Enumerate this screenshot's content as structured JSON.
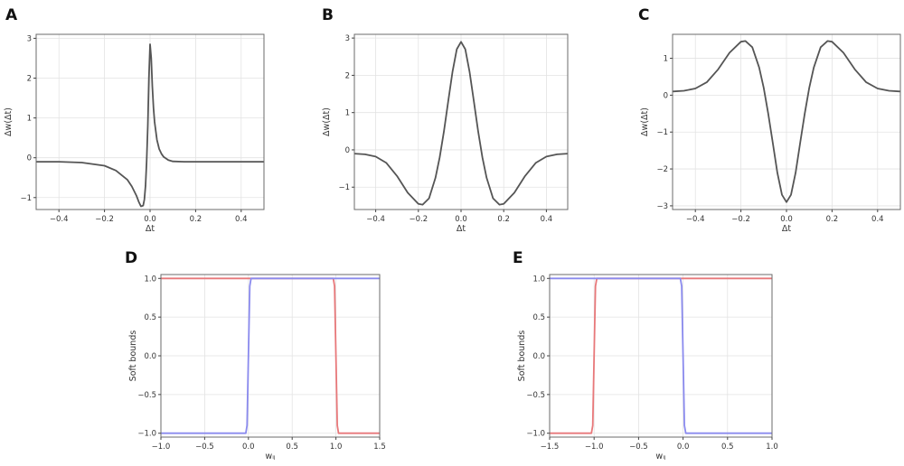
{
  "chart_data": [
    {
      "panel": "A",
      "type": "line",
      "xlabel": "Δt",
      "ylabel": "Δw(Δt)",
      "xlim": [
        -0.5,
        0.5
      ],
      "ylim": [
        -1.3,
        3.1
      ],
      "xticks": [
        -0.4,
        -0.2,
        0.0,
        0.2,
        0.4
      ],
      "xticklabels": [
        "−0.4",
        "−0.2",
        "0.0",
        "0.2",
        "0.4"
      ],
      "yticks": [
        -1,
        0,
        1,
        2,
        3
      ],
      "yticklabels": [
        "−1",
        "0",
        "1",
        "2",
        "3"
      ],
      "grid": true,
      "series": [
        {
          "color": "#555555",
          "x": [
            -0.5,
            -0.4,
            -0.3,
            -0.2,
            -0.15,
            -0.1,
            -0.08,
            -0.06,
            -0.05,
            -0.04,
            -0.03,
            -0.025,
            -0.02,
            -0.015,
            -0.01,
            -0.005,
            0.0,
            0.005,
            0.01,
            0.015,
            0.02,
            0.03,
            0.04,
            0.05,
            0.06,
            0.08,
            0.1,
            0.15,
            0.2,
            0.3,
            0.4,
            0.5
          ],
          "y": [
            -0.1,
            -0.1,
            -0.12,
            -0.2,
            -0.32,
            -0.55,
            -0.72,
            -0.95,
            -1.1,
            -1.22,
            -1.2,
            -1.05,
            -0.7,
            -0.1,
            0.8,
            2.0,
            2.85,
            2.5,
            1.8,
            1.25,
            0.9,
            0.45,
            0.22,
            0.1,
            0.02,
            -0.06,
            -0.09,
            -0.1,
            -0.1,
            -0.1,
            -0.1,
            -0.1
          ]
        }
      ]
    },
    {
      "panel": "B",
      "type": "line",
      "xlabel": "Δt",
      "ylabel": "Δw(Δt)",
      "xlim": [
        -0.5,
        0.5
      ],
      "ylim": [
        -1.6,
        3.1
      ],
      "xticks": [
        -0.4,
        -0.2,
        0.0,
        0.2,
        0.4
      ],
      "xticklabels": [
        "−0.4",
        "−0.2",
        "0.0",
        "0.2",
        "0.4"
      ],
      "yticks": [
        -1,
        0,
        1,
        2,
        3
      ],
      "yticklabels": [
        "−1",
        "0",
        "1",
        "2",
        "3"
      ],
      "grid": true,
      "series": [
        {
          "color": "#555555",
          "x": [
            -0.5,
            -0.45,
            -0.4,
            -0.35,
            -0.3,
            -0.25,
            -0.2,
            -0.18,
            -0.15,
            -0.12,
            -0.1,
            -0.08,
            -0.06,
            -0.04,
            -0.02,
            0.0,
            0.02,
            0.04,
            0.06,
            0.08,
            0.1,
            0.12,
            0.15,
            0.18,
            0.2,
            0.25,
            0.3,
            0.35,
            0.4,
            0.45,
            0.5
          ],
          "y": [
            -0.1,
            -0.12,
            -0.18,
            -0.35,
            -0.7,
            -1.15,
            -1.45,
            -1.47,
            -1.3,
            -0.75,
            -0.2,
            0.5,
            1.3,
            2.1,
            2.7,
            2.9,
            2.7,
            2.1,
            1.3,
            0.5,
            -0.2,
            -0.75,
            -1.3,
            -1.47,
            -1.45,
            -1.15,
            -0.7,
            -0.35,
            -0.18,
            -0.12,
            -0.1
          ]
        }
      ]
    },
    {
      "panel": "C",
      "type": "line",
      "xlabel": "Δt",
      "ylabel": "Δw(Δt)",
      "xlim": [
        -0.5,
        0.5
      ],
      "ylim": [
        -3.1,
        1.65
      ],
      "xticks": [
        -0.4,
        -0.2,
        0.0,
        0.2,
        0.4
      ],
      "xticklabels": [
        "−0.4",
        "−0.2",
        "0.0",
        "0.2",
        "0.4"
      ],
      "yticks": [
        -3,
        -2,
        -1,
        0,
        1
      ],
      "yticklabels": [
        "−3",
        "−2",
        "−1",
        "0",
        "1"
      ],
      "grid": true,
      "series": [
        {
          "color": "#555555",
          "x": [
            -0.5,
            -0.45,
            -0.4,
            -0.35,
            -0.3,
            -0.25,
            -0.2,
            -0.18,
            -0.15,
            -0.12,
            -0.1,
            -0.08,
            -0.06,
            -0.04,
            -0.02,
            0.0,
            0.02,
            0.04,
            0.06,
            0.08,
            0.1,
            0.12,
            0.15,
            0.18,
            0.2,
            0.25,
            0.3,
            0.35,
            0.4,
            0.45,
            0.5
          ],
          "y": [
            0.1,
            0.12,
            0.18,
            0.35,
            0.7,
            1.15,
            1.45,
            1.47,
            1.3,
            0.75,
            0.2,
            -0.5,
            -1.3,
            -2.1,
            -2.7,
            -2.9,
            -2.7,
            -2.1,
            -1.3,
            -0.5,
            0.2,
            0.75,
            1.3,
            1.47,
            1.45,
            1.15,
            0.7,
            0.35,
            0.18,
            0.12,
            0.1
          ]
        }
      ]
    },
    {
      "panel": "D",
      "type": "line",
      "xlabel": "wᵢⱼ",
      "ylabel": "Soft bounds",
      "xlim": [
        -1.0,
        1.5
      ],
      "ylim": [
        -1.05,
        1.05
      ],
      "xticks": [
        -1.0,
        -0.5,
        0.0,
        0.5,
        1.0,
        1.5
      ],
      "xticklabels": [
        "−1.0",
        "−0.5",
        "0.0",
        "0.5",
        "1.0",
        "1.5"
      ],
      "yticks": [
        -1.0,
        -0.5,
        0.0,
        0.5,
        1.0
      ],
      "yticklabels": [
        "−1.0",
        "−0.5",
        "0.0",
        "0.5",
        "1.0"
      ],
      "grid": true,
      "series": [
        {
          "color": "#e8787a",
          "x": [
            -1.0,
            0.97,
            0.985,
            1.0,
            1.015,
            1.03,
            1.5
          ],
          "y": [
            1.0,
            1.0,
            0.9,
            0.0,
            -0.9,
            -1.0,
            -1.0
          ]
        },
        {
          "color": "#8a8aee",
          "x": [
            -1.0,
            -0.03,
            -0.015,
            0.0,
            0.015,
            0.03,
            1.5
          ],
          "y": [
            -1.0,
            -1.0,
            -0.9,
            0.0,
            0.9,
            1.0,
            1.0
          ]
        }
      ]
    },
    {
      "panel": "E",
      "type": "line",
      "xlabel": "wᵢⱼ",
      "ylabel": "Soft bounds",
      "xlim": [
        -1.5,
        1.0
      ],
      "ylim": [
        -1.05,
        1.05
      ],
      "xticks": [
        -1.5,
        -1.0,
        -0.5,
        0.0,
        0.5,
        1.0
      ],
      "xticklabels": [
        "−1.5",
        "−1.0",
        "−0.5",
        "0.0",
        "0.5",
        "1.0"
      ],
      "yticks": [
        -1.0,
        -0.5,
        0.0,
        0.5,
        1.0
      ],
      "yticklabels": [
        "−1.0",
        "−0.5",
        "0.0",
        "0.5",
        "1.0"
      ],
      "grid": true,
      "series": [
        {
          "color": "#e8787a",
          "x": [
            -1.5,
            -1.03,
            -1.015,
            -1.0,
            -0.985,
            -0.97,
            1.0
          ],
          "y": [
            -1.0,
            -1.0,
            -0.9,
            0.0,
            0.9,
            1.0,
            1.0
          ]
        },
        {
          "color": "#8a8aee",
          "x": [
            -1.5,
            -0.03,
            -0.015,
            0.0,
            0.015,
            0.03,
            1.0
          ],
          "y": [
            1.0,
            1.0,
            0.9,
            0.0,
            -0.9,
            -1.0,
            -1.0
          ]
        }
      ]
    }
  ]
}
